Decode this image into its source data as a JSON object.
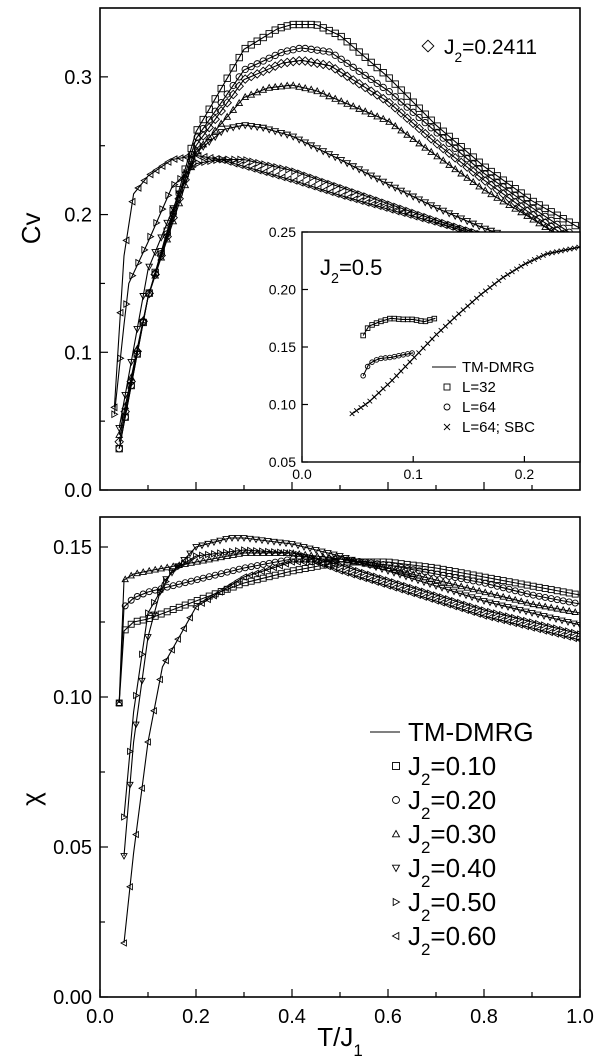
{
  "chart_data": [
    {
      "id": "cv",
      "type": "line",
      "ylabel": "Cv",
      "xlim": [
        0.0,
        1.0
      ],
      "ylim": [
        0.0,
        0.35
      ],
      "yticks": [
        "0.0",
        "0.1",
        "0.2",
        "0.3"
      ],
      "legend": [
        {
          "text": "J2=0.2411",
          "marker": "diamond"
        }
      ],
      "series": [
        {
          "label": "J2=0.10",
          "marker": "square",
          "points": [
            [
              0.04,
              0.03
            ],
            [
              0.1,
              0.14
            ],
            [
              0.2,
              0.26
            ],
            [
              0.3,
              0.32
            ],
            [
              0.37,
              0.335
            ],
            [
              0.4,
              0.338
            ],
            [
              0.45,
              0.338
            ],
            [
              0.5,
              0.33
            ],
            [
              0.6,
              0.3
            ],
            [
              0.7,
              0.265
            ],
            [
              0.8,
              0.235
            ],
            [
              0.9,
              0.21
            ],
            [
              1.0,
              0.19
            ]
          ]
        },
        {
          "label": "J2=0.20",
          "marker": "circle",
          "points": [
            [
              0.04,
              0.03
            ],
            [
              0.1,
              0.14
            ],
            [
              0.2,
              0.255
            ],
            [
              0.3,
              0.305
            ],
            [
              0.38,
              0.318
            ],
            [
              0.42,
              0.321
            ],
            [
              0.48,
              0.318
            ],
            [
              0.6,
              0.29
            ],
            [
              0.7,
              0.26
            ],
            [
              0.8,
              0.23
            ],
            [
              0.9,
              0.205
            ],
            [
              1.0,
              0.182
            ]
          ]
        },
        {
          "label": "J2=0.2411",
          "marker": "diamond",
          "points": [
            [
              0.04,
              0.035
            ],
            [
              0.1,
              0.14
            ],
            [
              0.2,
              0.25
            ],
            [
              0.3,
              0.298
            ],
            [
              0.38,
              0.31
            ],
            [
              0.42,
              0.312
            ],
            [
              0.48,
              0.308
            ],
            [
              0.6,
              0.282
            ],
            [
              0.7,
              0.252
            ],
            [
              0.8,
              0.225
            ],
            [
              0.9,
              0.2
            ],
            [
              1.0,
              0.178
            ]
          ]
        },
        {
          "label": "J2=0.30",
          "marker": "triangle-up",
          "points": [
            [
              0.04,
              0.04
            ],
            [
              0.1,
              0.14
            ],
            [
              0.2,
              0.245
            ],
            [
              0.3,
              0.285
            ],
            [
              0.35,
              0.292
            ],
            [
              0.4,
              0.294
            ],
            [
              0.45,
              0.29
            ],
            [
              0.6,
              0.268
            ],
            [
              0.7,
              0.243
            ],
            [
              0.8,
              0.218
            ],
            [
              0.9,
              0.197
            ],
            [
              1.0,
              0.175
            ]
          ]
        },
        {
          "label": "J2=0.40",
          "marker": "triangle-down",
          "points": [
            [
              0.04,
              0.045
            ],
            [
              0.1,
              0.16
            ],
            [
              0.2,
              0.245
            ],
            [
              0.26,
              0.262
            ],
            [
              0.3,
              0.265
            ],
            [
              0.34,
              0.263
            ],
            [
              0.4,
              0.257
            ],
            [
              0.5,
              0.24
            ],
            [
              0.6,
              0.222
            ],
            [
              0.7,
              0.205
            ],
            [
              0.8,
              0.19
            ],
            [
              0.9,
              0.178
            ],
            [
              1.0,
              0.168
            ]
          ]
        },
        {
          "label": "J2=0.50",
          "marker": "triangle-right",
          "points": [
            [
              0.03,
              0.055
            ],
            [
              0.05,
              0.12
            ],
            [
              0.06,
              0.15
            ],
            [
              0.1,
              0.18
            ],
            [
              0.15,
              0.22
            ],
            [
              0.2,
              0.237
            ],
            [
              0.25,
              0.24
            ],
            [
              0.3,
              0.24
            ],
            [
              0.4,
              0.232
            ],
            [
              0.5,
              0.22
            ],
            [
              0.6,
              0.208
            ],
            [
              0.7,
              0.196
            ],
            [
              0.8,
              0.185
            ],
            [
              0.9,
              0.175
            ],
            [
              1.0,
              0.165
            ]
          ]
        },
        {
          "label": "J2=0.60",
          "marker": "triangle-left",
          "points": [
            [
              0.03,
              0.06
            ],
            [
              0.05,
              0.17
            ],
            [
              0.07,
              0.215
            ],
            [
              0.1,
              0.228
            ],
            [
              0.15,
              0.24
            ],
            [
              0.2,
              0.243
            ],
            [
              0.25,
              0.24
            ],
            [
              0.3,
              0.235
            ],
            [
              0.4,
              0.225
            ],
            [
              0.5,
              0.214
            ],
            [
              0.6,
              0.204
            ],
            [
              0.7,
              0.194
            ],
            [
              0.8,
              0.184
            ],
            [
              0.9,
              0.175
            ],
            [
              1.0,
              0.166
            ]
          ]
        }
      ],
      "inset": {
        "label": "J2=0.5",
        "xlim": [
          0.0,
          0.25
        ],
        "ylim": [
          0.05,
          0.25
        ],
        "xticks": [
          "0.0",
          "0.1",
          "0.2"
        ],
        "yticks": [
          "0.05",
          "0.10",
          "0.15",
          "0.20",
          "0.25"
        ],
        "legend": [
          {
            "text": "TM-DMRG",
            "marker": "line"
          },
          {
            "text": "L=32",
            "marker": "square"
          },
          {
            "text": "L=64",
            "marker": "circle"
          },
          {
            "text": "L=64; SBC",
            "marker": "x"
          }
        ],
        "series": [
          {
            "label": "TM-DMRG",
            "marker": "line",
            "points": [
              [
                0.045,
                0.092
              ],
              [
                0.06,
                0.102
              ],
              [
                0.08,
                0.12
              ],
              [
                0.1,
                0.14
              ],
              [
                0.12,
                0.16
              ],
              [
                0.14,
                0.178
              ],
              [
                0.16,
                0.195
              ],
              [
                0.18,
                0.21
              ],
              [
                0.2,
                0.222
              ],
              [
                0.22,
                0.231
              ],
              [
                0.25,
                0.237
              ]
            ]
          },
          {
            "label": "L=32",
            "marker": "square",
            "points": [
              [
                0.055,
                0.16
              ],
              [
                0.06,
                0.168
              ],
              [
                0.07,
                0.172
              ],
              [
                0.08,
                0.175
              ],
              [
                0.09,
                0.174
              ],
              [
                0.1,
                0.174
              ],
              [
                0.11,
                0.172
              ],
              [
                0.12,
                0.175
              ]
            ]
          },
          {
            "label": "L=64",
            "marker": "circle",
            "points": [
              [
                0.055,
                0.125
              ],
              [
                0.06,
                0.135
              ],
              [
                0.065,
                0.138
              ],
              [
                0.07,
                0.14
              ],
              [
                0.08,
                0.141
              ],
              [
                0.09,
                0.143
              ],
              [
                0.1,
                0.145
              ]
            ]
          },
          {
            "label": "L=64; SBC",
            "marker": "x",
            "points": [
              [
                0.045,
                0.092
              ],
              [
                0.06,
                0.102
              ],
              [
                0.08,
                0.12
              ],
              [
                0.1,
                0.14
              ],
              [
                0.12,
                0.16
              ],
              [
                0.14,
                0.178
              ],
              [
                0.16,
                0.195
              ],
              [
                0.18,
                0.21
              ],
              [
                0.2,
                0.222
              ],
              [
                0.22,
                0.231
              ],
              [
                0.25,
                0.237
              ]
            ]
          }
        ]
      }
    },
    {
      "id": "chi",
      "type": "line",
      "ylabel": "χ",
      "xlabel": "T/J1",
      "xlim": [
        0.0,
        1.0
      ],
      "ylim": [
        0.0,
        0.16
      ],
      "xticks": [
        "0.0",
        "0.2",
        "0.4",
        "0.6",
        "0.8",
        "1.0"
      ],
      "yticks": [
        "0.00",
        "0.05",
        "0.10",
        "0.15"
      ],
      "legend": [
        {
          "text": "TM-DMRG",
          "marker": "line"
        },
        {
          "text": "J2=0.10",
          "marker": "square"
        },
        {
          "text": "J2=0.20",
          "marker": "circle"
        },
        {
          "text": "J2=0.30",
          "marker": "triangle-up"
        },
        {
          "text": "J2=0.40",
          "marker": "triangle-down"
        },
        {
          "text": "J2=0.50",
          "marker": "triangle-right"
        },
        {
          "text": "J2=0.60",
          "marker": "triangle-left"
        }
      ],
      "series": [
        {
          "label": "J2=0.10",
          "marker": "square",
          "points": [
            [
              0.04,
              0.098
            ],
            [
              0.05,
              0.122
            ],
            [
              0.07,
              0.125
            ],
            [
              0.1,
              0.126
            ],
            [
              0.2,
              0.132
            ],
            [
              0.3,
              0.138
            ],
            [
              0.4,
              0.142
            ],
            [
              0.5,
              0.145
            ],
            [
              0.6,
              0.145
            ],
            [
              0.7,
              0.143
            ],
            [
              0.8,
              0.14
            ],
            [
              0.9,
              0.137
            ],
            [
              1.0,
              0.134
            ]
          ]
        },
        {
          "label": "J2=0.20",
          "marker": "circle",
          "points": [
            [
              0.04,
              0.098
            ],
            [
              0.05,
              0.13
            ],
            [
              0.07,
              0.133
            ],
            [
              0.1,
              0.135
            ],
            [
              0.2,
              0.139
            ],
            [
              0.3,
              0.143
            ],
            [
              0.4,
              0.146
            ],
            [
              0.5,
              0.146
            ],
            [
              0.6,
              0.144
            ],
            [
              0.7,
              0.141
            ],
            [
              0.8,
              0.138
            ],
            [
              0.9,
              0.134
            ],
            [
              1.0,
              0.131
            ]
          ]
        },
        {
          "label": "J2=0.30",
          "marker": "triangle-up",
          "points": [
            [
              0.04,
              0.098
            ],
            [
              0.05,
              0.139
            ],
            [
              0.07,
              0.141
            ],
            [
              0.1,
              0.142
            ],
            [
              0.2,
              0.145
            ],
            [
              0.3,
              0.148
            ],
            [
              0.4,
              0.148
            ],
            [
              0.5,
              0.146
            ],
            [
              0.6,
              0.143
            ],
            [
              0.7,
              0.139
            ],
            [
              0.8,
              0.135
            ],
            [
              0.9,
              0.131
            ],
            [
              1.0,
              0.128
            ]
          ]
        },
        {
          "label": "J2=0.40",
          "marker": "triangle-down",
          "points": [
            [
              0.05,
              0.047
            ],
            [
              0.07,
              0.085
            ],
            [
              0.1,
              0.12
            ],
            [
              0.13,
              0.138
            ],
            [
              0.2,
              0.15
            ],
            [
              0.27,
              0.153
            ],
            [
              0.3,
              0.153
            ],
            [
              0.4,
              0.151
            ],
            [
              0.5,
              0.147
            ],
            [
              0.6,
              0.142
            ],
            [
              0.7,
              0.137
            ],
            [
              0.8,
              0.132
            ],
            [
              0.9,
              0.128
            ],
            [
              1.0,
              0.124
            ]
          ]
        },
        {
          "label": "J2=0.50",
          "marker": "triangle-right",
          "points": [
            [
              0.05,
              0.06
            ],
            [
              0.07,
              0.095
            ],
            [
              0.1,
              0.128
            ],
            [
              0.15,
              0.142
            ],
            [
              0.2,
              0.147
            ],
            [
              0.3,
              0.149
            ],
            [
              0.4,
              0.148
            ],
            [
              0.5,
              0.144
            ],
            [
              0.6,
              0.139
            ],
            [
              0.7,
              0.134
            ],
            [
              0.8,
              0.129
            ],
            [
              0.9,
              0.125
            ],
            [
              1.0,
              0.121
            ]
          ]
        },
        {
          "label": "J2=0.60",
          "marker": "triangle-left",
          "points": [
            [
              0.05,
              0.018
            ],
            [
              0.07,
              0.048
            ],
            [
              0.1,
              0.085
            ],
            [
              0.13,
              0.11
            ],
            [
              0.2,
              0.13
            ],
            [
              0.3,
              0.14
            ],
            [
              0.4,
              0.145
            ],
            [
              0.45,
              0.145
            ],
            [
              0.5,
              0.142
            ],
            [
              0.6,
              0.137
            ],
            [
              0.7,
              0.132
            ],
            [
              0.8,
              0.127
            ],
            [
              0.9,
              0.123
            ],
            [
              1.0,
              0.119
            ]
          ]
        }
      ]
    }
  ]
}
